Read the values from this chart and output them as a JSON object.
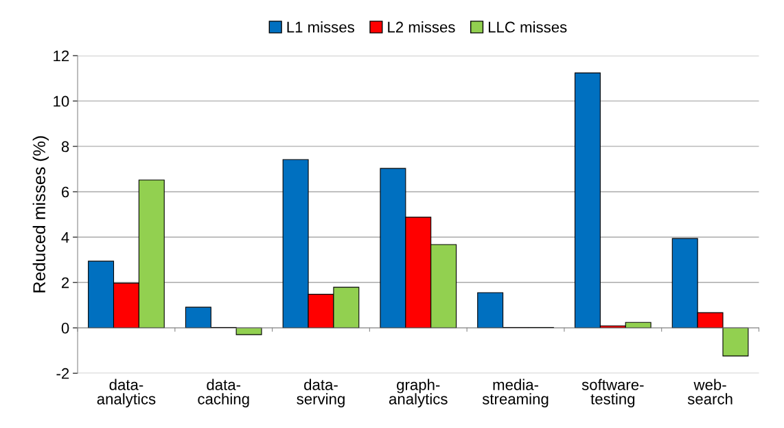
{
  "chart_data": {
    "type": "bar",
    "ylabel": "Reduced misses (%)",
    "categories": [
      "data-\nanalytics",
      "data-\ncaching",
      "data-\nserving",
      "graph-\nanalytics",
      "media-\nstreaming",
      "software-\ntesting",
      "web-\nsearch"
    ],
    "series": [
      {
        "name": "L1 misses",
        "color": "#0070c0",
        "values": [
          2.94,
          0.91,
          7.42,
          7.03,
          1.55,
          11.24,
          3.94
        ]
      },
      {
        "name": "L2 misses",
        "color": "#ff0000",
        "values": [
          1.97,
          0.02,
          1.48,
          4.88,
          0.02,
          0.09,
          0.67
        ]
      },
      {
        "name": "LLC misses",
        "color": "#92d050",
        "values": [
          6.52,
          -0.3,
          1.79,
          3.67,
          0.02,
          0.24,
          -1.24
        ]
      }
    ],
    "ylim": [
      -2,
      12
    ],
    "yticks": [
      {
        "value": -2,
        "label": "-2"
      },
      0,
      2,
      4,
      6,
      8,
      10,
      12
    ],
    "grid": "y",
    "legend": "top"
  }
}
